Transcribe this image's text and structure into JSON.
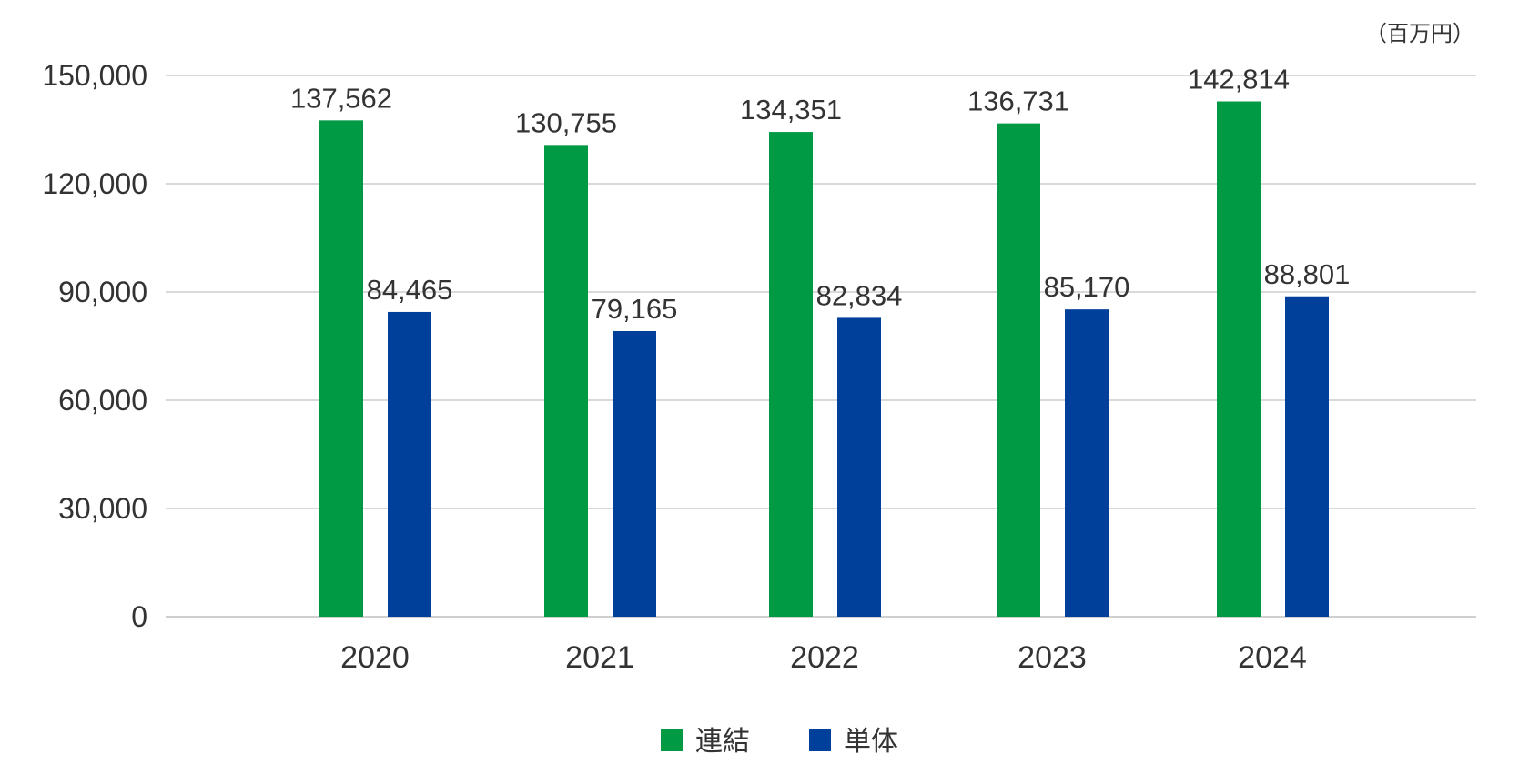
{
  "chart_data": {
    "type": "bar",
    "unit": "（百万円）",
    "categories": [
      "2020",
      "2021",
      "2022",
      "2023",
      "2024"
    ],
    "series": [
      {
        "name": "連結",
        "color": "#009944",
        "values": [
          137562,
          130755,
          134351,
          136731,
          142814
        ]
      },
      {
        "name": "単体",
        "color": "#00409A",
        "values": [
          84465,
          79165,
          82834,
          85170,
          88801
        ]
      }
    ],
    "data_labels": [
      [
        "137,562",
        "130,755",
        "134,351",
        "136,731",
        "142,814"
      ],
      [
        "84,465",
        "79,165",
        "82,834",
        "85,170",
        "88,801"
      ]
    ],
    "yticks": [
      0,
      30000,
      60000,
      90000,
      120000,
      150000
    ],
    "ytick_labels": [
      "0",
      "30,000",
      "60,000",
      "90,000",
      "120,000",
      "150,000"
    ],
    "ylim": [
      0,
      150000
    ],
    "grid": true,
    "legend": "bottom-center",
    "xlabel": "",
    "ylabel": ""
  }
}
